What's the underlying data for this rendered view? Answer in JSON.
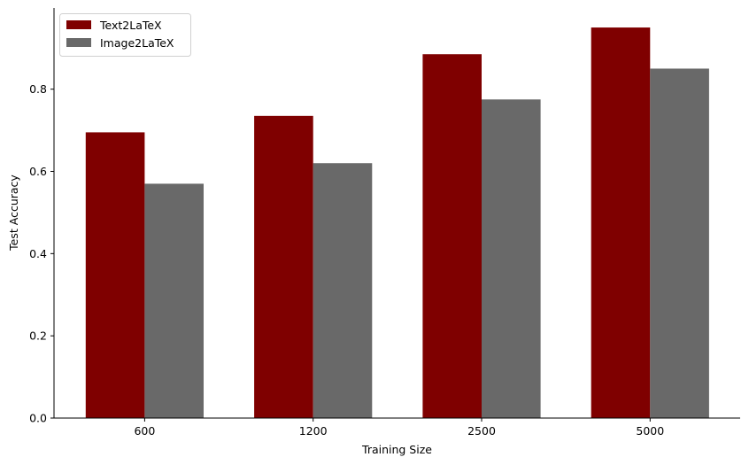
{
  "chart_data": {
    "type": "bar",
    "title": "",
    "xlabel": "Training Size",
    "ylabel": "Test Accuracy",
    "categories": [
      "600",
      "1200",
      "2500",
      "5000"
    ],
    "series": [
      {
        "name": "Text2LaTeX",
        "values": [
          0.695,
          0.735,
          0.885,
          0.95
        ],
        "color": "#7f0000"
      },
      {
        "name": "Image2LaTeX",
        "values": [
          0.57,
          0.62,
          0.775,
          0.85
        ],
        "color": "#696969"
      }
    ],
    "ylim": [
      0,
      0.9975
    ],
    "yticks": [
      "0.0",
      "0.2",
      "0.4",
      "0.6",
      "0.8"
    ],
    "grid": false,
    "legend_position": "top-left"
  }
}
